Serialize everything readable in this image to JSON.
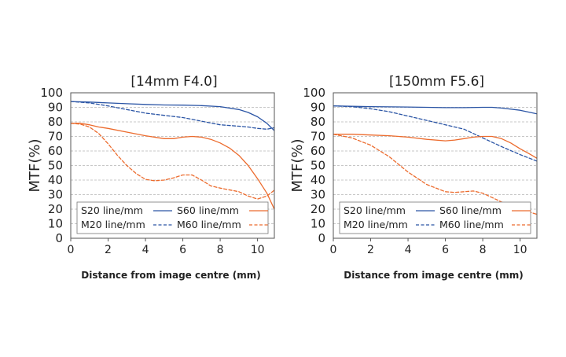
{
  "colors": {
    "S20": "#2b55a5",
    "M20": "#2b55a5",
    "S60": "#ec6b2d",
    "M60": "#ec6b2d"
  },
  "chart_data": [
    {
      "type": "line",
      "title": "[14mm F4.0]",
      "xlabel": "Distance from image centre (mm)",
      "ylabel": "MTF(%)",
      "xlim": [
        0,
        10.9
      ],
      "ylim": [
        0,
        100
      ],
      "xticks": [
        0,
        2,
        4,
        6,
        8,
        10
      ],
      "yticks": [
        0,
        10,
        20,
        30,
        40,
        50,
        60,
        70,
        80,
        90,
        100
      ],
      "grid": "horizontal-dashed",
      "legend_position": "bottom",
      "series": [
        {
          "name": "S20 line/mm",
          "key": "S20",
          "style": "solid",
          "points": [
            [
              0,
              94
            ],
            [
              1,
              93.6
            ],
            [
              2,
              93
            ],
            [
              3,
              92.5
            ],
            [
              4,
              92
            ],
            [
              5,
              91.6
            ],
            [
              6,
              91.5
            ],
            [
              7,
              91.2
            ],
            [
              8,
              90.5
            ],
            [
              9,
              88.5
            ],
            [
              9.5,
              86.5
            ],
            [
              10,
              83.5
            ],
            [
              10.5,
              79
            ],
            [
              10.9,
              74
            ]
          ]
        },
        {
          "name": "M20 line/mm",
          "key": "M20",
          "style": "dashed",
          "points": [
            [
              0,
              94
            ],
            [
              1,
              93
            ],
            [
              2,
              91
            ],
            [
              3,
              88.5
            ],
            [
              4,
              86
            ],
            [
              5,
              84.5
            ],
            [
              6,
              83
            ],
            [
              7,
              80.5
            ],
            [
              8,
              78
            ],
            [
              9,
              77
            ],
            [
              9.5,
              76.5
            ],
            [
              10,
              75.5
            ],
            [
              10.5,
              75
            ],
            [
              10.9,
              76
            ]
          ]
        },
        {
          "name": "S60 line/mm",
          "key": "S60",
          "style": "solid",
          "points": [
            [
              0,
              79
            ],
            [
              0.5,
              79
            ],
            [
              1,
              78
            ],
            [
              1.5,
              76.5
            ],
            [
              2,
              75.5
            ],
            [
              3,
              73
            ],
            [
              4,
              70.5
            ],
            [
              5,
              68.5
            ],
            [
              5.5,
              68.5
            ],
            [
              6,
              69.5
            ],
            [
              6.5,
              70
            ],
            [
              7,
              69.5
            ],
            [
              7.5,
              68
            ],
            [
              8,
              65.5
            ],
            [
              8.5,
              62
            ],
            [
              9,
              57
            ],
            [
              9.5,
              50
            ],
            [
              10,
              41
            ],
            [
              10.5,
              31
            ],
            [
              10.9,
              20
            ]
          ]
        },
        {
          "name": "M60 line/mm",
          "key": "M60",
          "style": "dashed",
          "points": [
            [
              0,
              79
            ],
            [
              0.5,
              78.5
            ],
            [
              1,
              76.5
            ],
            [
              1.5,
              72
            ],
            [
              2,
              65
            ],
            [
              2.5,
              57
            ],
            [
              3,
              50
            ],
            [
              3.5,
              44.5
            ],
            [
              4,
              40.5
            ],
            [
              4.5,
              39.5
            ],
            [
              5,
              40
            ],
            [
              5.5,
              41.5
            ],
            [
              6,
              43.5
            ],
            [
              6.5,
              43.5
            ],
            [
              7,
              40
            ],
            [
              7.5,
              36
            ],
            [
              8,
              34.5
            ],
            [
              9,
              32
            ],
            [
              9.5,
              29
            ],
            [
              10,
              27
            ],
            [
              10.5,
              29
            ],
            [
              10.9,
              33
            ]
          ]
        }
      ]
    },
    {
      "type": "line",
      "title": "[150mm F5.6]",
      "xlabel": "Distance from image centre (mm)",
      "ylabel": "MTF(%)",
      "xlim": [
        0,
        10.9
      ],
      "ylim": [
        0,
        100
      ],
      "xticks": [
        0,
        2,
        4,
        6,
        8,
        10
      ],
      "yticks": [
        0,
        10,
        20,
        30,
        40,
        50,
        60,
        70,
        80,
        90,
        100
      ],
      "grid": "horizontal-dashed",
      "legend_position": "bottom",
      "series": [
        {
          "name": "S20 line/mm",
          "key": "S20",
          "style": "solid",
          "points": [
            [
              0,
              91
            ],
            [
              2,
              90.5
            ],
            [
              4,
              90.2
            ],
            [
              6,
              89.8
            ],
            [
              7,
              89.8
            ],
            [
              8,
              90
            ],
            [
              8.5,
              90
            ],
            [
              9,
              89.5
            ],
            [
              10,
              88
            ],
            [
              10.9,
              85.5
            ]
          ]
        },
        {
          "name": "M20 line/mm",
          "key": "M20",
          "style": "dashed",
          "points": [
            [
              0,
              91
            ],
            [
              1,
              90.5
            ],
            [
              2,
              89
            ],
            [
              3,
              87
            ],
            [
              4,
              84
            ],
            [
              5,
              81
            ],
            [
              6,
              78
            ],
            [
              7,
              75
            ],
            [
              7.5,
              72
            ],
            [
              8,
              69
            ],
            [
              9,
              63
            ],
            [
              10,
              57.5
            ],
            [
              10.9,
              53
            ]
          ]
        },
        {
          "name": "S60 line/mm",
          "key": "S60",
          "style": "solid",
          "points": [
            [
              0,
              71.5
            ],
            [
              1,
              71.5
            ],
            [
              2,
              71
            ],
            [
              3,
              70.5
            ],
            [
              4,
              69.5
            ],
            [
              5,
              68
            ],
            [
              6,
              67
            ],
            [
              6.5,
              67.5
            ],
            [
              7,
              68.5
            ],
            [
              7.5,
              69.5
            ],
            [
              8,
              70
            ],
            [
              8.5,
              70
            ],
            [
              9,
              68.5
            ],
            [
              9.5,
              65.5
            ],
            [
              10,
              61.5
            ],
            [
              10.5,
              58
            ],
            [
              10.9,
              55
            ]
          ]
        },
        {
          "name": "M60 line/mm",
          "key": "M60",
          "style": "dashed",
          "points": [
            [
              0,
              71.5
            ],
            [
              1,
              69
            ],
            [
              2,
              64
            ],
            [
              3,
              56
            ],
            [
              4,
              45.5
            ],
            [
              5,
              37
            ],
            [
              6,
              32
            ],
            [
              6.5,
              31.5
            ],
            [
              7,
              32
            ],
            [
              7.5,
              32.5
            ],
            [
              8,
              31
            ],
            [
              8.5,
              28
            ],
            [
              9,
              25
            ],
            [
              9.5,
              22
            ],
            [
              10,
              19.5
            ],
            [
              10.5,
              18
            ],
            [
              10.9,
              16.5
            ]
          ]
        }
      ]
    }
  ]
}
